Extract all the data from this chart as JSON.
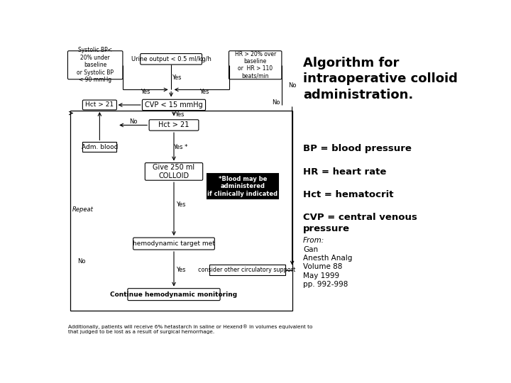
{
  "title": "Algorithm for\nintraoperative colloid\nadministration.",
  "abbrev_lines": [
    "BP = blood pressure",
    "HR = heart rate",
    "Hct = hematocrit",
    "CVP = central venous\npressure"
  ],
  "from_lines": [
    "From:",
    "Gan",
    "Anesth Analg",
    "Volume 88",
    "May 1999",
    "pp. 992-998"
  ],
  "footnote": "Additionally, patients will receive 6% hetastarch in saline or Hexend® in volumes equivalent to\nthat judged to be lost as a result of surgical hemorrhage.",
  "bg_color": "#ffffff"
}
